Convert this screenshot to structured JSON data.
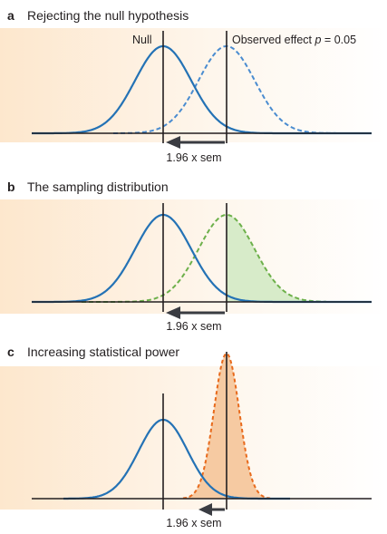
{
  "panels": [
    {
      "letter": "a",
      "title": "Rejecting the null hypothesis",
      "null_label": "Null",
      "observed_label": "Observed effect p = 0.05",
      "arrow_label": "1.96 x sem"
    },
    {
      "letter": "b",
      "title": "The sampling distribution",
      "arrow_label": "1.96 x sem"
    },
    {
      "letter": "c",
      "title": "Increasing statistical power",
      "arrow_label": "1.96 x sem"
    }
  ],
  "colors": {
    "null_curve": "#2472b5",
    "observed_curve_a": "#4a8cd0",
    "sampling_curve": "#6db04a",
    "sampling_fill": "#d7ebc9",
    "power_curve": "#e86a1c",
    "power_fill": "#f6caa2",
    "axis": "#231f20",
    "arrow": "#3a3c42",
    "background_warm": "#fde9d2"
  }
}
